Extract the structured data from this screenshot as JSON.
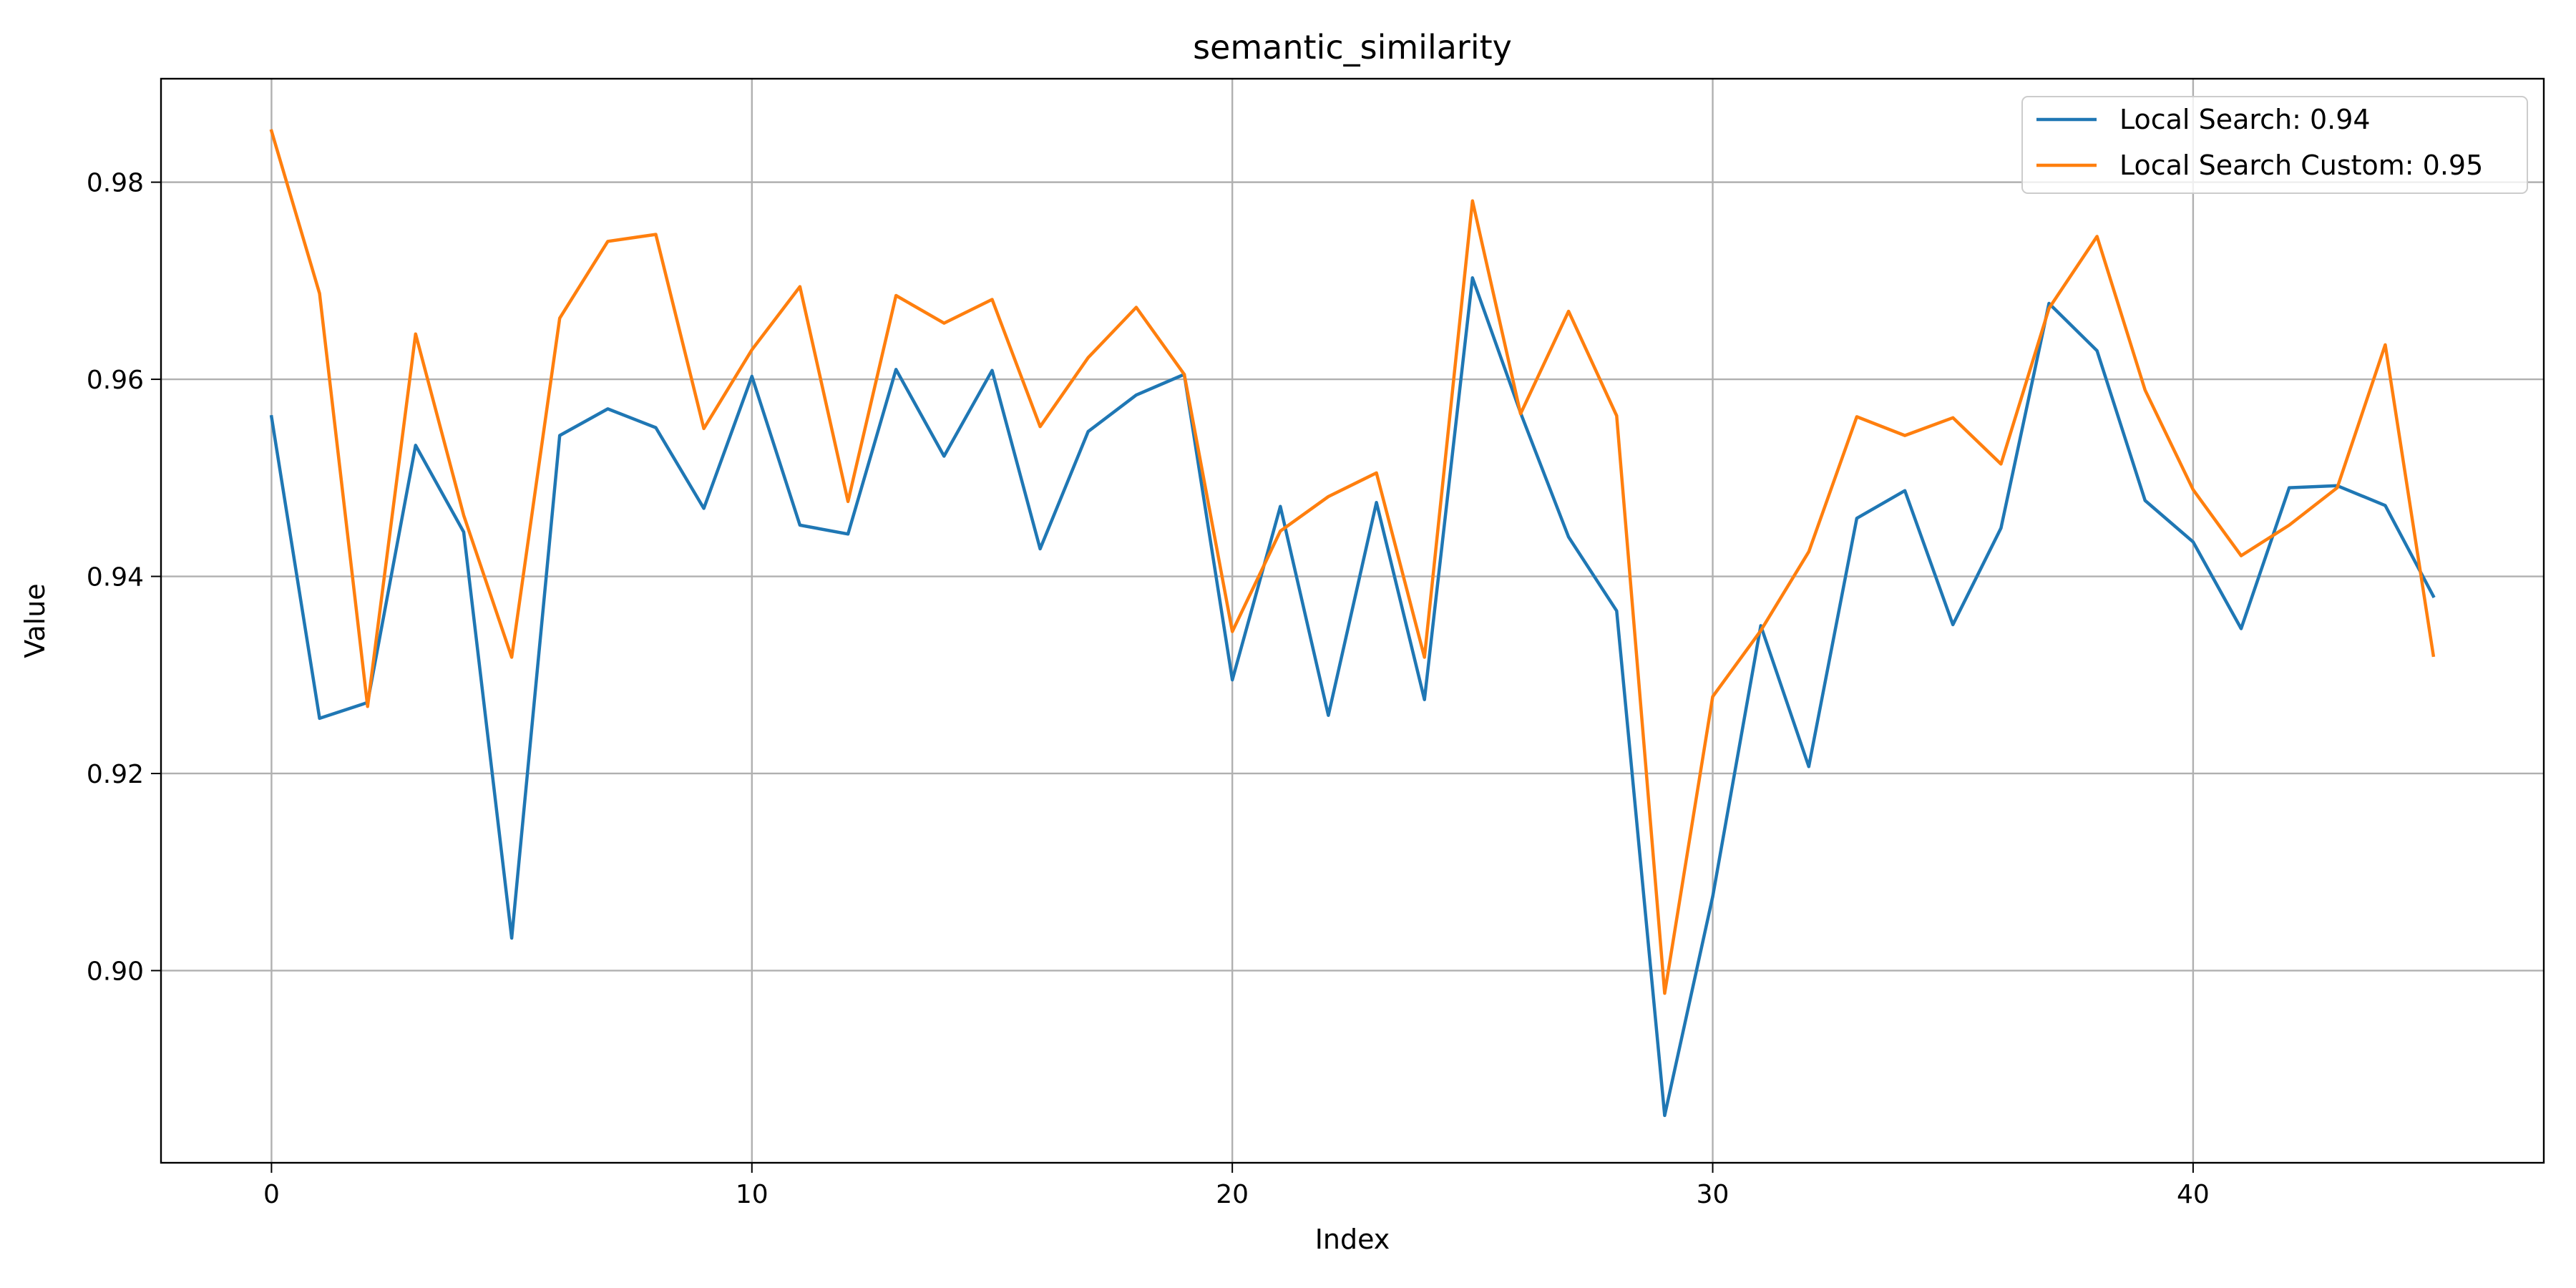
{
  "chart_data": {
    "type": "line",
    "title": "semantic_similarity",
    "xlabel": "Index",
    "ylabel": "Value",
    "xlim": [
      -2.3,
      47.3
    ],
    "ylim": [
      0.8805,
      0.9905
    ],
    "xticks": [
      0,
      10,
      20,
      30,
      40
    ],
    "yticks": [
      0.9,
      0.92,
      0.94,
      0.96,
      0.98
    ],
    "ytick_labels": [
      "0.90",
      "0.92",
      "0.94",
      "0.96",
      "0.98"
    ],
    "grid": true,
    "legend_position": "top-right",
    "x": [
      0,
      1,
      2,
      3,
      4,
      5,
      6,
      7,
      8,
      9,
      10,
      11,
      12,
      13,
      14,
      15,
      16,
      17,
      18,
      19,
      20,
      21,
      22,
      23,
      24,
      25,
      26,
      27,
      28,
      29,
      30,
      31,
      32,
      33,
      34,
      35,
      36,
      37,
      38,
      39,
      40,
      41,
      42,
      43,
      44,
      45
    ],
    "series": [
      {
        "name": "Local Search: 0.94",
        "color": "#1f77b4",
        "values": [
          0.9562,
          0.9256,
          0.9272,
          0.9533,
          0.9445,
          0.9033,
          0.9543,
          0.957,
          0.9551,
          0.9469,
          0.9603,
          0.9452,
          0.9443,
          0.961,
          0.9522,
          0.9609,
          0.9428,
          0.9547,
          0.9584,
          0.9605,
          0.9295,
          0.9471,
          0.9259,
          0.9475,
          0.9275,
          0.9703,
          0.9566,
          0.944,
          0.9365,
          0.8853,
          0.9075,
          0.935,
          0.9207,
          0.9459,
          0.9487,
          0.9351,
          0.9449,
          0.9677,
          0.9629,
          0.9477,
          0.9435,
          0.9347,
          0.949,
          0.9492,
          0.9472,
          0.938
        ]
      },
      {
        "name": "Local Search Custom: 0.95",
        "color": "#ff7f0e",
        "values": [
          0.9852,
          0.9687,
          0.9268,
          0.9646,
          0.9462,
          0.9318,
          0.9662,
          0.974,
          0.9747,
          0.955,
          0.963,
          0.9694,
          0.9476,
          0.9685,
          0.9657,
          0.9681,
          0.9552,
          0.9622,
          0.9673,
          0.9605,
          0.9344,
          0.9446,
          0.9481,
          0.9505,
          0.9318,
          0.9781,
          0.9565,
          0.9669,
          0.9563,
          0.8977,
          0.9278,
          0.9345,
          0.9425,
          0.9562,
          0.9543,
          0.9561,
          0.9514,
          0.9672,
          0.9745,
          0.9589,
          0.9488,
          0.9421,
          0.9452,
          0.949,
          0.9635,
          0.932
        ]
      }
    ]
  }
}
